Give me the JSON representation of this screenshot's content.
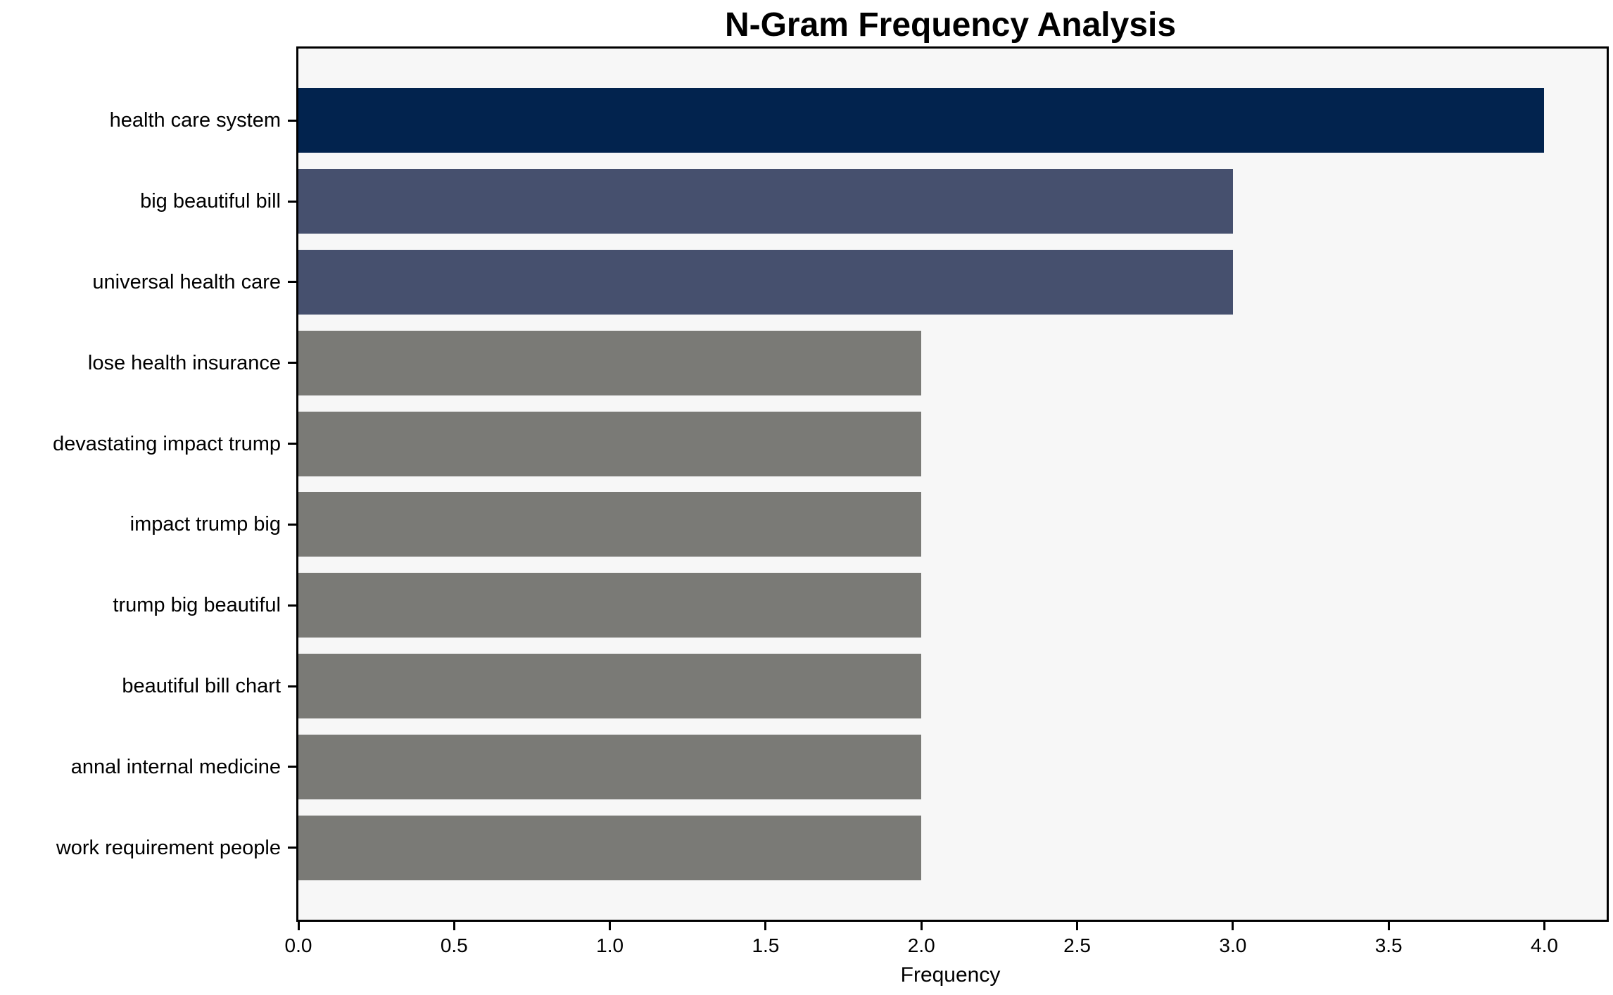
{
  "chart_data": {
    "type": "bar",
    "orientation": "horizontal",
    "title": "N-Gram Frequency Analysis",
    "xlabel": "Frequency",
    "ylabel": "",
    "categories": [
      "health care system",
      "big beautiful bill",
      "universal health care",
      "lose health insurance",
      "devastating impact trump",
      "impact trump big",
      "trump big beautiful",
      "beautiful bill chart",
      "annal internal medicine",
      "work requirement people"
    ],
    "values": [
      4.0,
      3.0,
      3.0,
      2.0,
      2.0,
      2.0,
      2.0,
      2.0,
      2.0,
      2.0
    ],
    "bar_colors": [
      "#02234e",
      "#46506e",
      "#46506e",
      "#7a7a76",
      "#7a7a76",
      "#7a7a76",
      "#7a7a76",
      "#7a7a76",
      "#7a7a76",
      "#7a7a76"
    ],
    "xlim": [
      0,
      4.2
    ],
    "xticks": [
      {
        "value": 0.0,
        "label": "0.0"
      },
      {
        "value": 0.5,
        "label": "0.5"
      },
      {
        "value": 1.0,
        "label": "1.0"
      },
      {
        "value": 1.5,
        "label": "1.5"
      },
      {
        "value": 2.0,
        "label": "2.0"
      },
      {
        "value": 2.5,
        "label": "2.5"
      },
      {
        "value": 3.0,
        "label": "3.0"
      },
      {
        "value": 3.5,
        "label": "3.5"
      },
      {
        "value": 4.0,
        "label": "4.0"
      }
    ],
    "grid": false,
    "legend": "none",
    "plot_background": "#f7f7f7",
    "spine_color": "#000000",
    "bar_band_fraction": 0.8,
    "axis_margin_fraction": 0.05
  }
}
